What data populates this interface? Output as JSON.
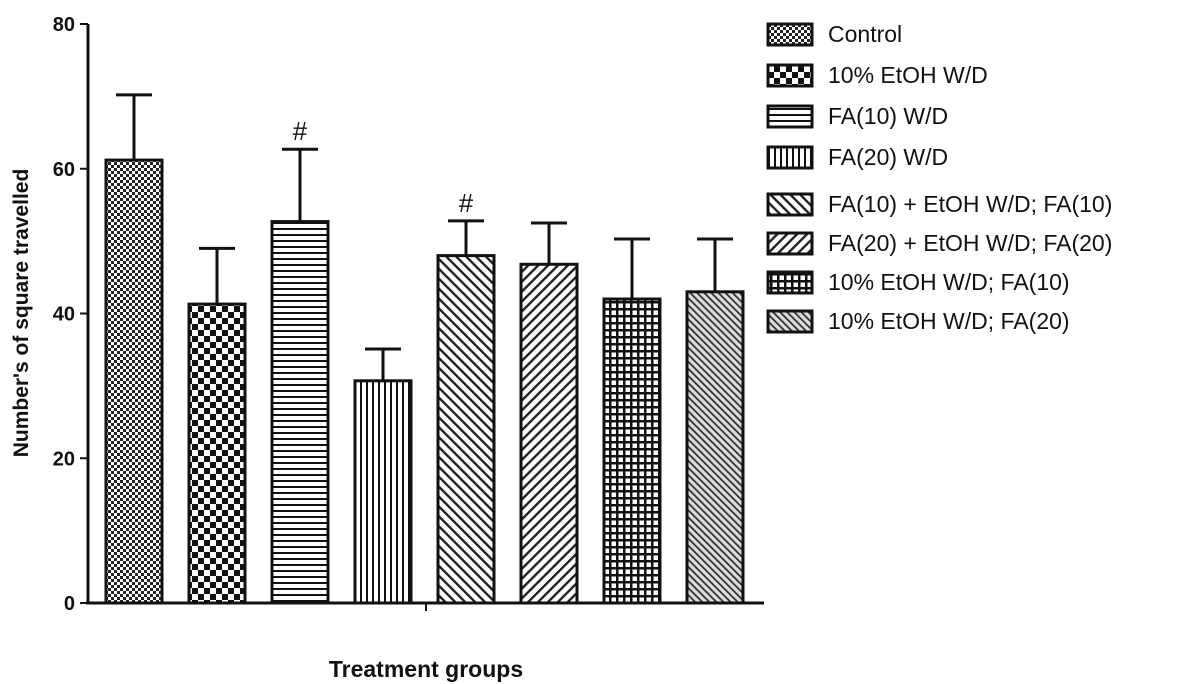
{
  "chart_data": {
    "type": "bar",
    "title": "",
    "xlabel": "Treatment groups",
    "ylabel": "Number's of square travelled",
    "ylim": [
      0,
      80
    ],
    "yticks": [
      0,
      20,
      40,
      60,
      80
    ],
    "grid": false,
    "legend_position": "right",
    "categories": [
      "Control",
      "10% EtOH W/D",
      "FA(10) W/D",
      "FA(20) W/D",
      "FA(10) + EtOH W/D; FA(10)",
      "FA(20) + EtOH W/D; FA(20)",
      "10% EtOH W/D; FA(10)",
      "10% EtOH W/D; FA(20)"
    ],
    "values": [
      61.2,
      41.3,
      52.7,
      30.7,
      48.0,
      46.8,
      42.0,
      43.0
    ],
    "errors": [
      9.0,
      7.7,
      10.0,
      4.4,
      4.8,
      5.7,
      8.3,
      7.3
    ],
    "annotations": [
      "",
      "",
      "#",
      "",
      "#",
      "",
      "",
      ""
    ],
    "patterns": [
      "checker",
      "bigcheck",
      "horizontal",
      "vertical",
      "diag-right",
      "diag-left",
      "grid",
      "fine-diag"
    ],
    "colors": {
      "ink": "#111111",
      "background": "#ffffff"
    }
  }
}
